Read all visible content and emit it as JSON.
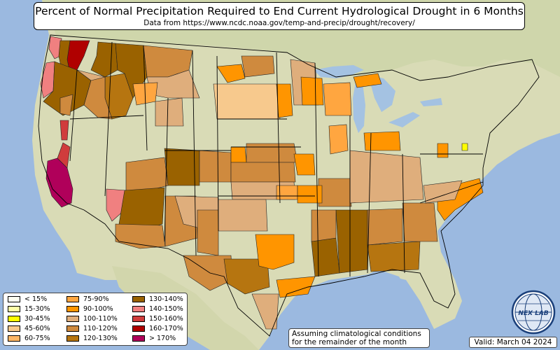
{
  "title": "Percent of Normal Precipitation Required to End Current Hydrological Drought in 6 Months",
  "subtitle": "Data from https://www.ncdc.noaa.gov/temp-and-precip/drought/recovery/",
  "legend": [
    {
      "label": "< 15%",
      "color": "#fffff0"
    },
    {
      "label": "15-30%",
      "color": "#ffffa8"
    },
    {
      "label": "30-45%",
      "color": "#ffff00"
    },
    {
      "label": "45-60%",
      "color": "#f7c98d"
    },
    {
      "label": "60-75%",
      "color": "#ffb766"
    },
    {
      "label": "75-90%",
      "color": "#ffa640"
    },
    {
      "label": "90-100%",
      "color": "#ff9500"
    },
    {
      "label": "100-110%",
      "color": "#dfae7c"
    },
    {
      "label": "110-120%",
      "color": "#cf8a3e"
    },
    {
      "label": "120-130%",
      "color": "#b67510"
    },
    {
      "label": "130-140%",
      "color": "#9a6200"
    },
    {
      "label": "140-150%",
      "color": "#f08080"
    },
    {
      "label": "150-160%",
      "color": "#d03c3c"
    },
    {
      "label": "160-170%",
      "color": "#b00000"
    },
    {
      "label": "> 170%",
      "color": "#b0005a"
    }
  ],
  "note_line1": "Assuming climatological conditions",
  "note_line2": "for the remainder of the month",
  "valid": "Valid: March 04 2024",
  "logo_text": "NEX LAB",
  "colors": {
    "ocean": "#9bb9e0",
    "land": "#d7dcb4",
    "lake": "#a4c2e2"
  },
  "icons": [
    "nexlab-globe-logo"
  ]
}
